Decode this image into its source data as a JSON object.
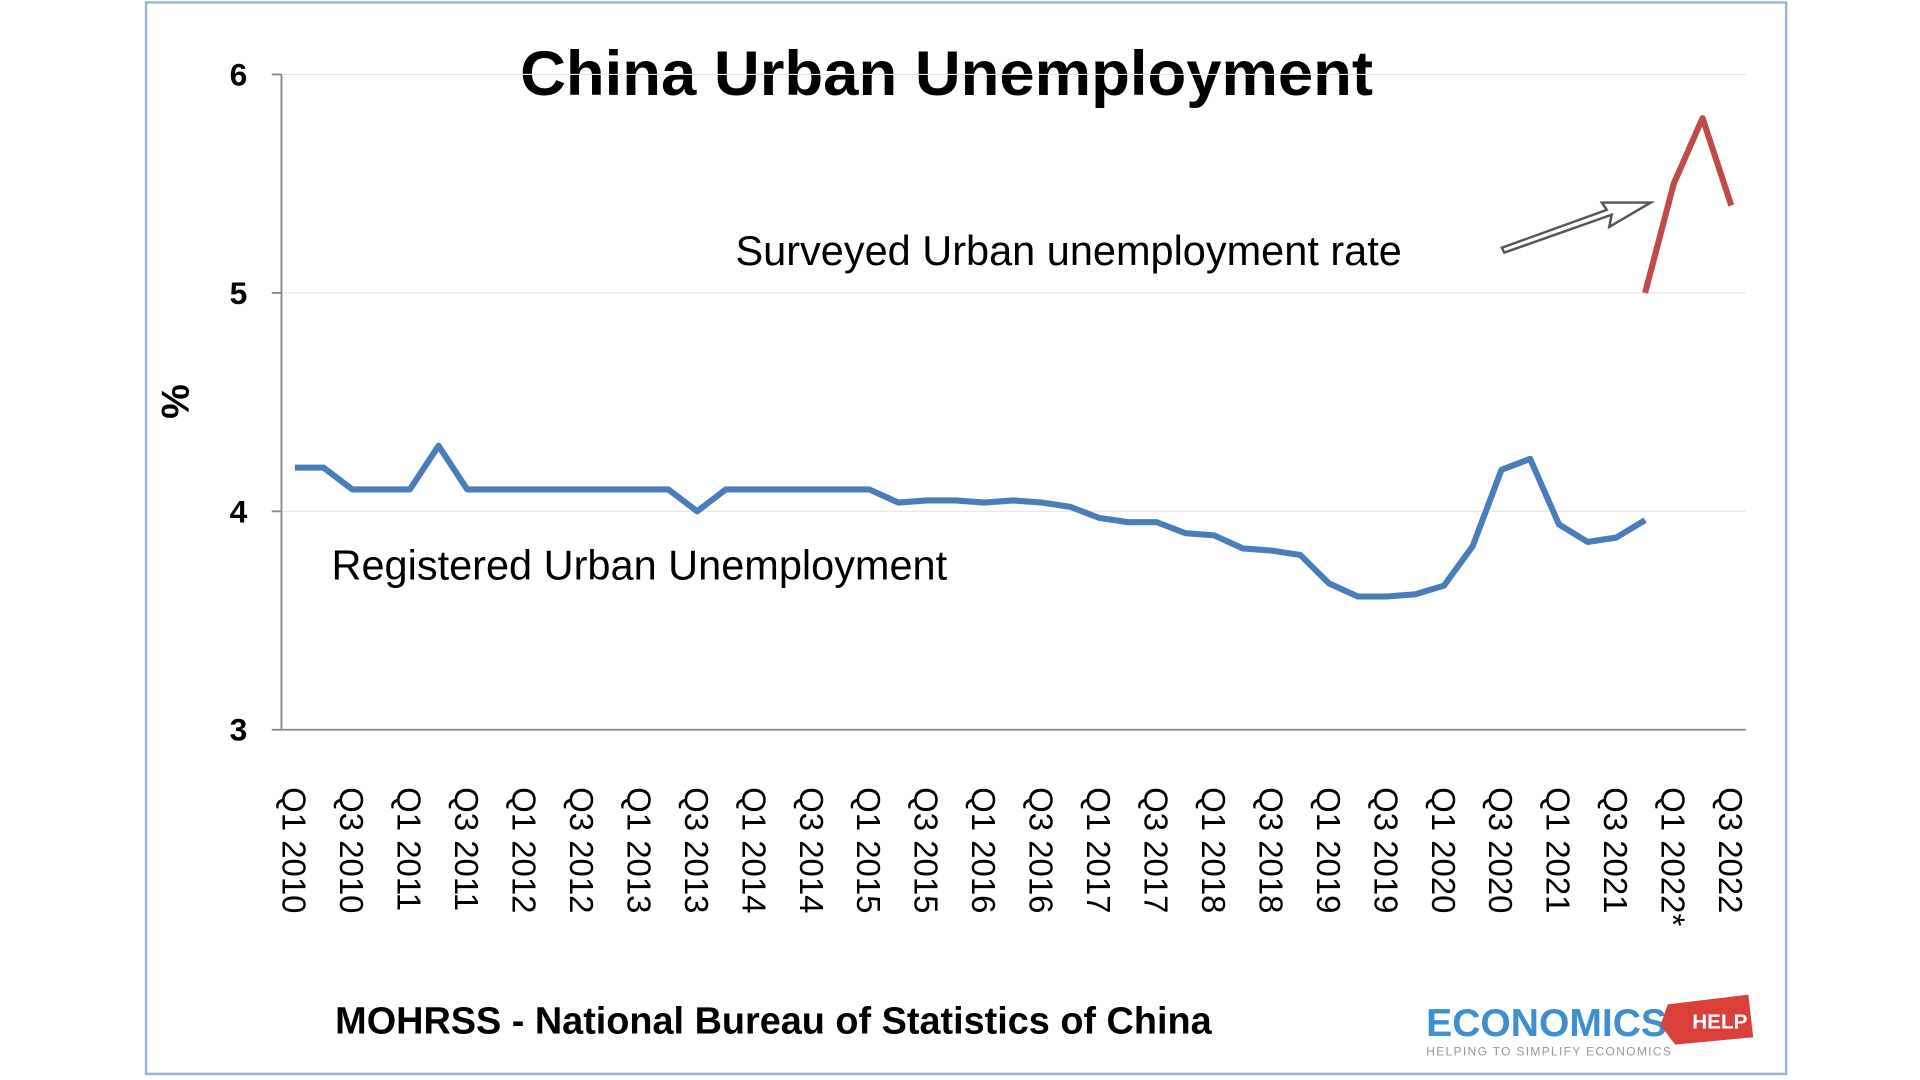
{
  "chart_data": {
    "type": "line",
    "title": "China Urban Unemployment",
    "y_label": "%",
    "source": "MOHRSS - National Bureau of Statistics of China",
    "logo": {
      "main": "ECONOMICS",
      "badge": "HELP",
      "tagline": "HELPING TO SIMPLIFY ECONOMICS"
    },
    "categories": [
      "Q1 2010",
      null,
      "Q3 2010",
      null,
      "Q1 2011",
      null,
      "Q3 2011",
      null,
      "Q1 2012",
      null,
      "Q3 2012",
      null,
      "Q1 2013",
      null,
      "Q3 2013",
      null,
      "Q1 2014",
      null,
      "Q3 2014",
      null,
      "Q1 2015",
      null,
      "Q3 2015",
      null,
      "Q1 2016",
      null,
      "Q3 2016",
      null,
      "Q1 2017",
      null,
      "Q3 2017",
      null,
      "Q1 2018",
      null,
      "Q3 2018",
      null,
      "Q1 2019",
      null,
      "Q3 2019",
      null,
      "Q1 2020",
      null,
      "Q3 2020",
      null,
      "Q1 2021",
      null,
      "Q3 2021",
      null,
      "Q1 2022*",
      null,
      "Q3 2022"
    ],
    "series": [
      {
        "name": "Registered Urban Unemployment",
        "color": "#4a7ebb",
        "values": [
          4.2,
          4.2,
          4.1,
          4.1,
          4.1,
          4.3,
          4.1,
          4.1,
          4.1,
          4.1,
          4.1,
          4.1,
          4.1,
          4.1,
          4.0,
          4.1,
          4.1,
          4.1,
          4.1,
          4.1,
          4.1,
          4.04,
          4.05,
          4.05,
          4.04,
          4.05,
          4.04,
          4.02,
          3.97,
          3.95,
          3.95,
          3.9,
          3.89,
          3.83,
          3.82,
          3.8,
          3.67,
          3.61,
          3.61,
          3.62,
          3.66,
          3.84,
          4.19,
          4.24,
          3.94,
          3.86,
          3.88,
          3.96,
          null,
          null,
          null
        ]
      },
      {
        "name": "Surveyed Urban unemployment rate",
        "color": "#be4b48",
        "values": [
          null,
          null,
          null,
          null,
          null,
          null,
          null,
          null,
          null,
          null,
          null,
          null,
          null,
          null,
          null,
          null,
          null,
          null,
          null,
          null,
          null,
          null,
          null,
          null,
          null,
          null,
          null,
          null,
          null,
          null,
          null,
          null,
          null,
          null,
          null,
          null,
          null,
          null,
          null,
          null,
          null,
          null,
          null,
          null,
          null,
          null,
          null,
          5.0,
          5.5,
          5.8,
          5.4
        ]
      }
    ],
    "ylim": [
      3,
      6
    ],
    "yticks": [
      3,
      4,
      5,
      6
    ],
    "grid": true
  }
}
